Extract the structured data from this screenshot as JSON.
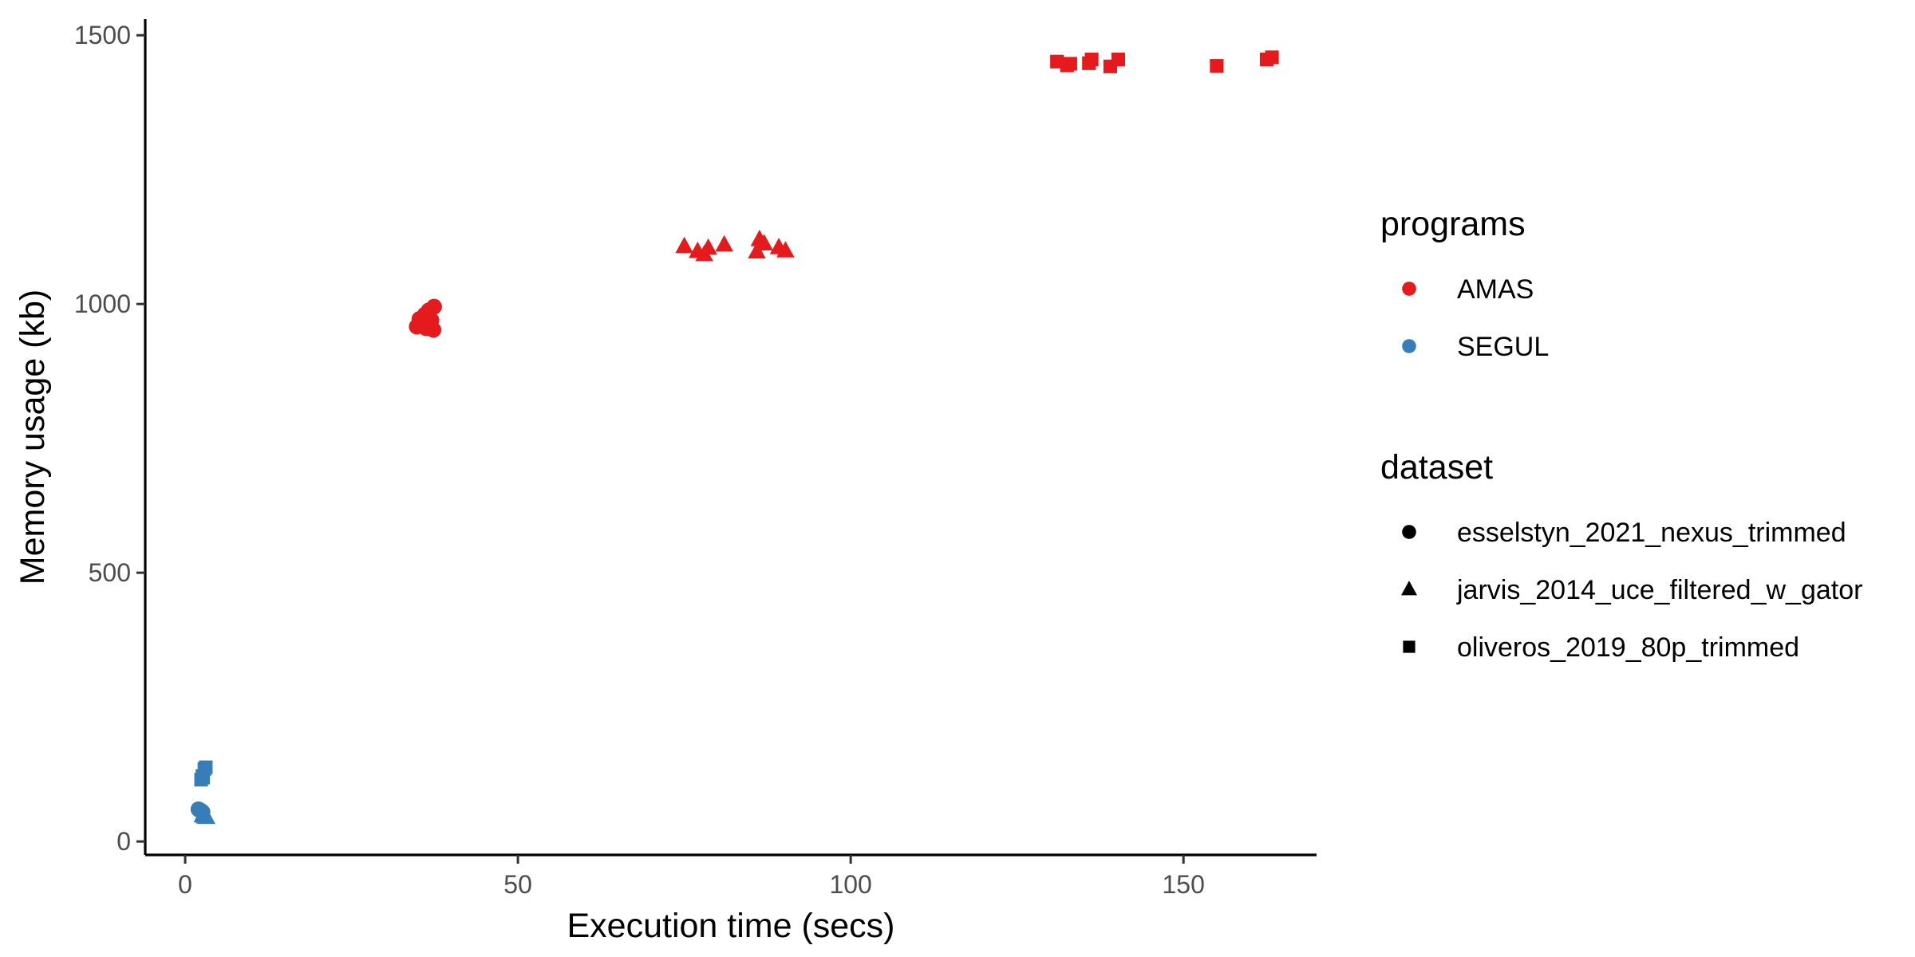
{
  "chart_data": {
    "type": "scatter",
    "xlabel": "Execution time (secs)",
    "ylabel": "Memory usage (kb)",
    "xlim": [
      -6,
      170
    ],
    "ylim": [
      -25,
      1530
    ],
    "xticks": [
      0,
      50,
      100,
      150
    ],
    "yticks": [
      0,
      500,
      1000,
      1500
    ],
    "grid": false,
    "legend_position": "right",
    "colors": {
      "AMAS": "#e41a1c",
      "SEGUL": "#377eb8"
    },
    "shape_map": {
      "esselstyn_2021_nexus_trimmed": "circle",
      "jarvis_2014_uce_filtered_w_gator": "triangle",
      "oliveros_2019_80p_trimmed": "square"
    },
    "legends": [
      {
        "title": "programs",
        "entries": [
          {
            "label": "AMAS",
            "color": "#e41a1c",
            "shape": "circle"
          },
          {
            "label": "SEGUL",
            "color": "#377eb8",
            "shape": "circle"
          }
        ]
      },
      {
        "title": "dataset",
        "entries": [
          {
            "label": "esselstyn_2021_nexus_trimmed",
            "color": "#000000",
            "shape": "circle"
          },
          {
            "label": "jarvis_2014_uce_filtered_w_gator",
            "color": "#000000",
            "shape": "triangle"
          },
          {
            "label": "oliveros_2019_80p_trimmed",
            "color": "#000000",
            "shape": "square"
          }
        ]
      }
    ],
    "series": [
      {
        "program": "AMAS",
        "dataset": "esselstyn_2021_nexus_trimmed",
        "points": [
          [
            34.8,
            958
          ],
          [
            35.2,
            972
          ],
          [
            35.6,
            965
          ],
          [
            36.0,
            980
          ],
          [
            36.2,
            955
          ],
          [
            36.6,
            988
          ],
          [
            37.0,
            970
          ],
          [
            37.3,
            952
          ],
          [
            37.4,
            995
          ],
          [
            35.9,
            962
          ]
        ]
      },
      {
        "program": "AMAS",
        "dataset": "jarvis_2014_uce_filtered_w_gator",
        "points": [
          [
            75.0,
            1107
          ],
          [
            77.0,
            1098
          ],
          [
            78.0,
            1092
          ],
          [
            78.6,
            1104
          ],
          [
            81.0,
            1110
          ],
          [
            85.9,
            1097
          ],
          [
            86.3,
            1120
          ],
          [
            87.0,
            1112
          ],
          [
            89.2,
            1105
          ],
          [
            90.2,
            1099
          ]
        ]
      },
      {
        "program": "AMAS",
        "dataset": "oliveros_2019_80p_trimmed",
        "points": [
          [
            131.0,
            1451
          ],
          [
            132.5,
            1444
          ],
          [
            133.0,
            1447
          ],
          [
            135.8,
            1448
          ],
          [
            136.2,
            1455
          ],
          [
            139.0,
            1442
          ],
          [
            140.2,
            1455
          ],
          [
            155.0,
            1443
          ],
          [
            162.5,
            1455
          ],
          [
            163.3,
            1459
          ]
        ]
      },
      {
        "program": "SEGUL",
        "dataset": "esselstyn_2021_nexus_trimmed",
        "points": [
          [
            2.0,
            60
          ],
          [
            2.2,
            58
          ],
          [
            2.4,
            57
          ],
          [
            2.6,
            55
          ],
          [
            2.1,
            59
          ]
        ]
      },
      {
        "program": "SEGUL",
        "dataset": "jarvis_2014_uce_filtered_w_gator",
        "points": [
          [
            2.6,
            48
          ],
          [
            2.9,
            46
          ],
          [
            3.2,
            45
          ],
          [
            3.0,
            47
          ]
        ]
      },
      {
        "program": "SEGUL",
        "dataset": "oliveros_2019_80p_trimmed",
        "points": [
          [
            2.4,
            115
          ],
          [
            2.6,
            122
          ],
          [
            2.9,
            135
          ],
          [
            3.1,
            138
          ],
          [
            2.7,
            119
          ]
        ]
      }
    ]
  }
}
